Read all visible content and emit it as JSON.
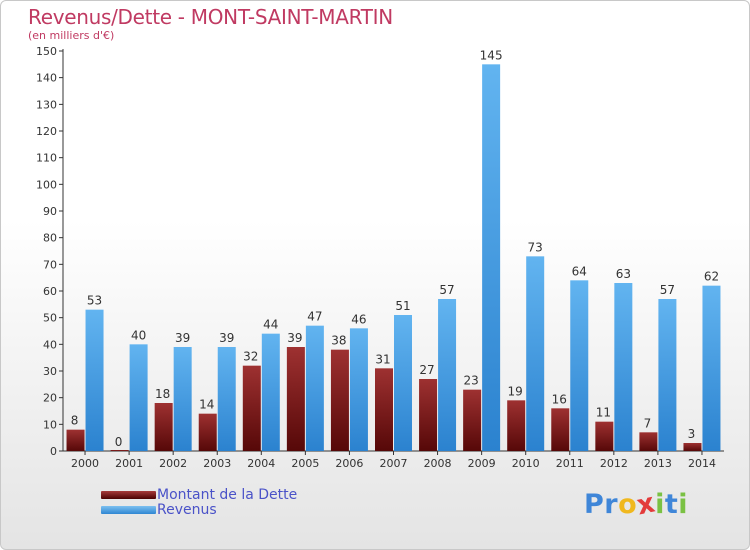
{
  "chart_data": {
    "type": "bar",
    "title": "Revenus/Dette - MONT-SAINT-MARTIN",
    "subtitle": "(en milliers d'€)",
    "categories": [
      "2000",
      "2001",
      "2002",
      "2003",
      "2004",
      "2005",
      "2006",
      "2007",
      "2008",
      "2009",
      "2010",
      "2011",
      "2012",
      "2013",
      "2014"
    ],
    "series": [
      {
        "name": "Montant de la Dette",
        "color": "#7a1616",
        "values": [
          8,
          0,
          18,
          14,
          32,
          39,
          38,
          31,
          27,
          23,
          19,
          16,
          11,
          7,
          3
        ]
      },
      {
        "name": "Revenus",
        "color": "#4aa3e6",
        "values": [
          53,
          40,
          39,
          39,
          44,
          47,
          46,
          51,
          57,
          145,
          73,
          64,
          63,
          57,
          62
        ]
      }
    ],
    "ylim": [
      0,
      150
    ],
    "yticks": [
      0,
      10,
      20,
      30,
      40,
      50,
      60,
      70,
      80,
      90,
      100,
      110,
      120,
      130,
      140,
      150
    ],
    "grid": false,
    "legend_position": "bottom-left",
    "xlabel": "",
    "ylabel": ""
  },
  "logo": {
    "letters": [
      "P",
      "r",
      "o",
      "x",
      "i",
      "t",
      "i"
    ],
    "colors": [
      "#3f86d8",
      "#3f86d8",
      "#f0b81e",
      "#e33a3a",
      "#7ac143",
      "#3f86d8",
      "#7ac143"
    ]
  }
}
